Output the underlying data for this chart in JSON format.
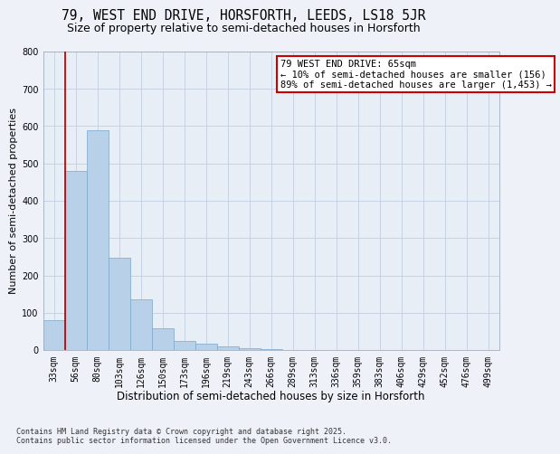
{
  "title1": "79, WEST END DRIVE, HORSFORTH, LEEDS, LS18 5JR",
  "title2": "Size of property relative to semi-detached houses in Horsforth",
  "xlabel": "Distribution of semi-detached houses by size in Horsforth",
  "ylabel": "Number of semi-detached properties",
  "categories": [
    "33sqm",
    "56sqm",
    "80sqm",
    "103sqm",
    "126sqm",
    "150sqm",
    "173sqm",
    "196sqm",
    "219sqm",
    "243sqm",
    "266sqm",
    "289sqm",
    "313sqm",
    "336sqm",
    "359sqm",
    "383sqm",
    "406sqm",
    "429sqm",
    "452sqm",
    "476sqm",
    "499sqm"
  ],
  "values": [
    80,
    480,
    590,
    248,
    135,
    58,
    25,
    18,
    10,
    5,
    2,
    0,
    0,
    0,
    0,
    0,
    0,
    0,
    0,
    0,
    0
  ],
  "bar_color": "#b8d0e8",
  "bar_edge_color": "#7aa8cc",
  "annotation_text": "79 WEST END DRIVE: 65sqm\n← 10% of semi-detached houses are smaller (156)\n89% of semi-detached houses are larger (1,453) →",
  "annotation_box_color": "#ffffff",
  "annotation_box_edge": "#cc0000",
  "red_line_color": "#cc0000",
  "grid_color": "#c8d4e4",
  "bg_color": "#e8eef6",
  "fig_color": "#eef2f8",
  "footer": "Contains HM Land Registry data © Crown copyright and database right 2025.\nContains public sector information licensed under the Open Government Licence v3.0.",
  "ylim": [
    0,
    800
  ],
  "yticks": [
    0,
    100,
    200,
    300,
    400,
    500,
    600,
    700,
    800
  ],
  "title1_fontsize": 10.5,
  "title2_fontsize": 9,
  "xlabel_fontsize": 8.5,
  "ylabel_fontsize": 8,
  "tick_fontsize": 7,
  "footer_fontsize": 6,
  "annot_fontsize": 7.5
}
